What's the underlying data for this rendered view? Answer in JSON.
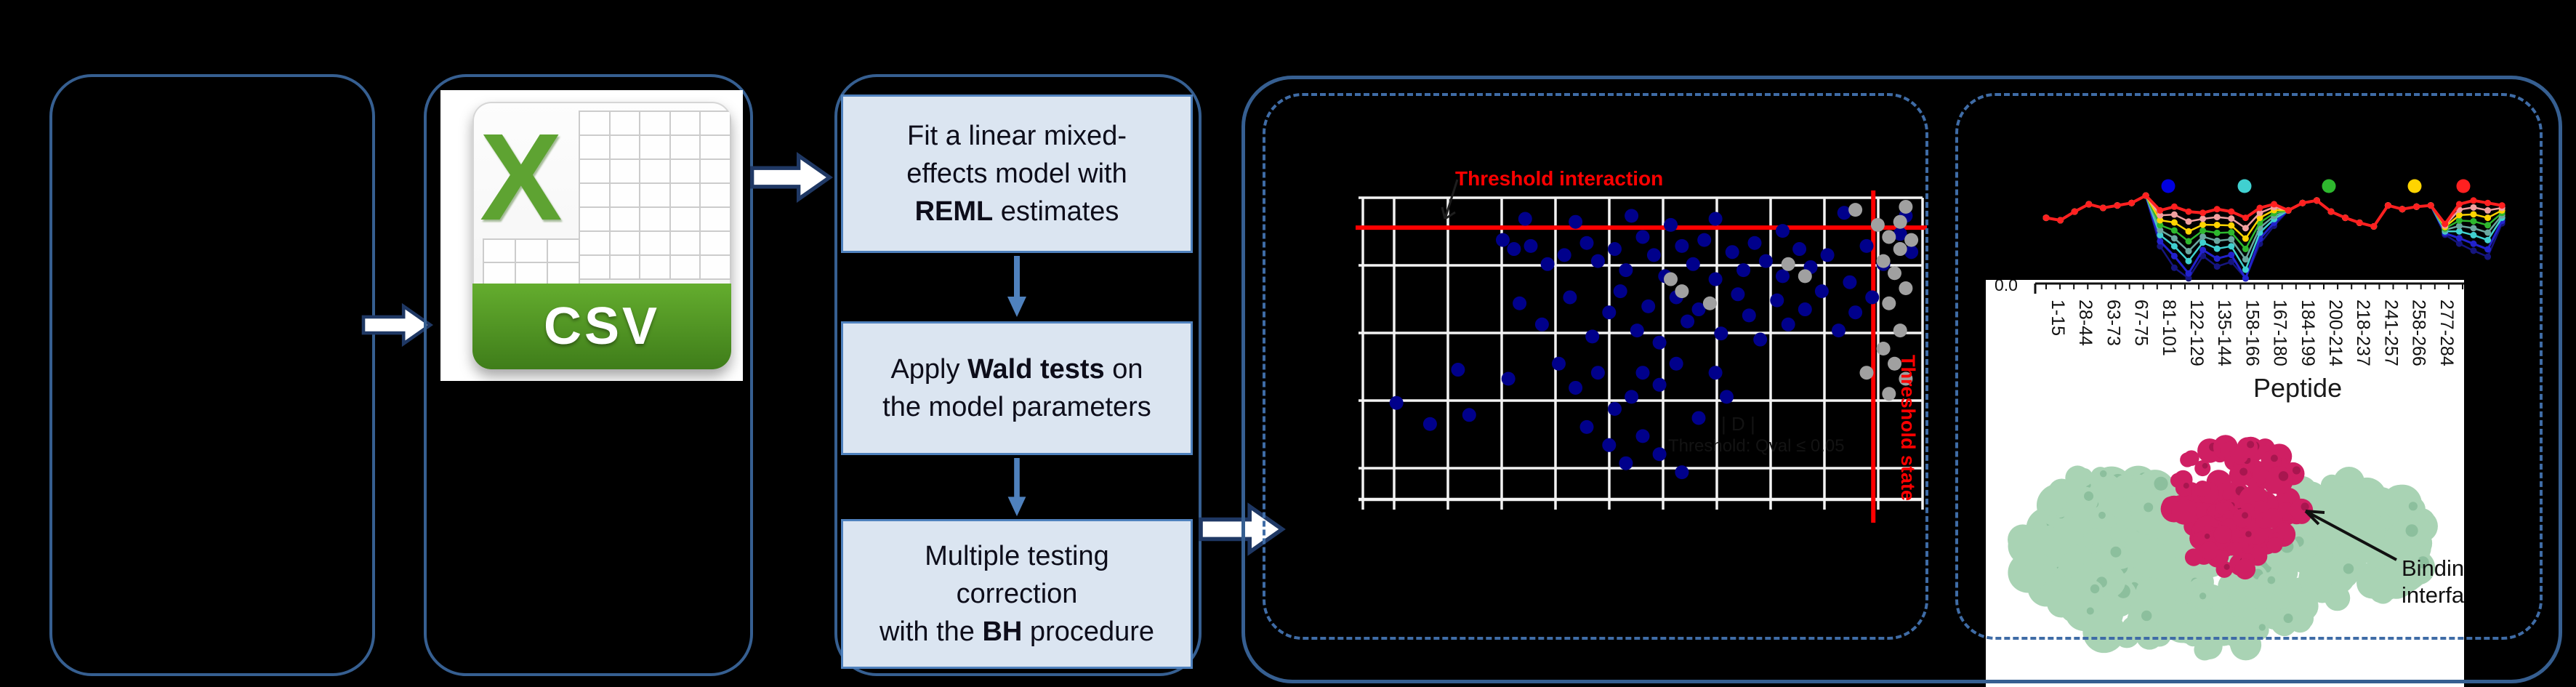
{
  "colors": {
    "panel_border": "#365f91",
    "dashed_border": "#3f6ca6",
    "flow_box_fill": "#dbe5f1",
    "flow_box_border": "#4f81bd",
    "connector_blue": "#4f81bd",
    "block_arrow_stroke": "#1f3864",
    "threshold_red": "#ff0000",
    "scatter_blue": "#00008b",
    "scatter_gray": "#a0a0a0",
    "csv_green": "#5ea332",
    "protein_green": "#a9d3b4",
    "protein_magenta": "#cf1f63"
  },
  "csv": {
    "label": "CSV"
  },
  "flow": {
    "boxes": [
      {
        "segments": [
          {
            "t": "Fit a linear mixed-",
            "b": false
          },
          {
            "t": "\n",
            "b": false
          },
          {
            "t": "effects model with",
            "b": false
          },
          {
            "t": "\n",
            "b": false
          },
          {
            "t": "REML",
            "b": true
          },
          {
            "t": " estimates",
            "b": false
          }
        ]
      },
      {
        "segments": [
          {
            "t": "Apply ",
            "b": false
          },
          {
            "t": "Wald tests",
            "b": true
          },
          {
            "t": " on",
            "b": false
          },
          {
            "t": "\n",
            "b": false
          },
          {
            "t": "the model parameters",
            "b": false
          }
        ]
      },
      {
        "segments": [
          {
            "t": "Multiple testing",
            "b": false
          },
          {
            "t": "\n",
            "b": false
          },
          {
            "t": "correction",
            "b": false
          },
          {
            "t": "\n",
            "b": false
          },
          {
            "t": "with the ",
            "b": false
          },
          {
            "t": "BH",
            "b": true
          },
          {
            "t": " procedure",
            "b": false
          }
        ]
      }
    ]
  },
  "scatter_labels": {
    "title": "Threshold interaction",
    "vline_label": "Threshold state",
    "faint_line1": "| D |",
    "faint_line2": "Threshold: Qval ≤ 0.05"
  },
  "protein_labels": {
    "line1": "Binding",
    "line2": "interface"
  },
  "chart_data": [
    {
      "type": "scatter",
      "title": "Threshold interaction",
      "annotations": [
        "Threshold state",
        "Threshold: Qval ≤ 0.05"
      ],
      "grid": "on",
      "threshold_h_pct": 9.9,
      "threshold_v_pct": 91.2,
      "series": [
        {
          "name": "peptides-significant-blue",
          "color": "#00008b",
          "points": [
            [
              29,
              7
            ],
            [
              38,
              8
            ],
            [
              48,
              6
            ],
            [
              55,
              9
            ],
            [
              63,
              7
            ],
            [
              86,
              5
            ],
            [
              97,
              6
            ],
            [
              75,
              11
            ],
            [
              25,
              14
            ],
            [
              27,
              17
            ],
            [
              30,
              16
            ],
            [
              33,
              22
            ],
            [
              36,
              19
            ],
            [
              40,
              15
            ],
            [
              42,
              21
            ],
            [
              45,
              17
            ],
            [
              47,
              24
            ],
            [
              50,
              13
            ],
            [
              52,
              19
            ],
            [
              54,
              26
            ],
            [
              57,
              16
            ],
            [
              59,
              22
            ],
            [
              61,
              14
            ],
            [
              63,
              27
            ],
            [
              66,
              18
            ],
            [
              68,
              24
            ],
            [
              70,
              15
            ],
            [
              72,
              21
            ],
            [
              75,
              26
            ],
            [
              78,
              17
            ],
            [
              80,
              23
            ],
            [
              83,
              19
            ],
            [
              87,
              28
            ],
            [
              90,
              16
            ],
            [
              93,
              22
            ],
            [
              96,
              12
            ],
            [
              98,
              18
            ],
            [
              28,
              35
            ],
            [
              32,
              42
            ],
            [
              37,
              33
            ],
            [
              41,
              46
            ],
            [
              44,
              38
            ],
            [
              46,
              31
            ],
            [
              49,
              44
            ],
            [
              51,
              36
            ],
            [
              53,
              48
            ],
            [
              56,
              33
            ],
            [
              58,
              41
            ],
            [
              60,
              37
            ],
            [
              64,
              45
            ],
            [
              67,
              32
            ],
            [
              69,
              39
            ],
            [
              71,
              47
            ],
            [
              74,
              34
            ],
            [
              76,
              42
            ],
            [
              79,
              37
            ],
            [
              82,
              31
            ],
            [
              85,
              44
            ],
            [
              88,
              38
            ],
            [
              91,
              33
            ],
            [
              17,
              57
            ],
            [
              19,
              72
            ],
            [
              26,
              60
            ],
            [
              35,
              55
            ],
            [
              38,
              63
            ],
            [
              42,
              58
            ],
            [
              45,
              70
            ],
            [
              48,
              66
            ],
            [
              50,
              58
            ],
            [
              53,
              62
            ],
            [
              56,
              55
            ],
            [
              40,
              76
            ],
            [
              44,
              82
            ],
            [
              47,
              88
            ],
            [
              50,
              79
            ],
            [
              53,
              85
            ],
            [
              57,
              91
            ],
            [
              60,
              73
            ],
            [
              63,
              58
            ],
            [
              65,
              66
            ],
            [
              6,
              68
            ],
            [
              12,
              75
            ]
          ]
        },
        {
          "name": "peptides-nonsignificant-gray",
          "color": "#a0a0a0",
          "points": [
            [
              55,
              27
            ],
            [
              57,
              31
            ],
            [
              62,
              35
            ],
            [
              76,
              22
            ],
            [
              79,
              26
            ],
            [
              92,
              9
            ],
            [
              94,
              13
            ],
            [
              96,
              17
            ],
            [
              93,
              21
            ],
            [
              95,
              25
            ],
            [
              97,
              30
            ],
            [
              94,
              35
            ],
            [
              96,
              44
            ],
            [
              93,
              50
            ],
            [
              95,
              55
            ],
            [
              97,
              60
            ],
            [
              94,
              65
            ],
            [
              90,
              58
            ],
            [
              96,
              8
            ],
            [
              98,
              14
            ],
            [
              88,
              4
            ],
            [
              97,
              3
            ]
          ]
        }
      ]
    },
    {
      "type": "line",
      "xlabel": "Peptide",
      "ytick_visible": "0.0",
      "categories": [
        "1-15",
        "28-44",
        "63-73",
        "67-75",
        "81-101",
        "122-129",
        "135-144",
        "158-166",
        "167-180",
        "184-199",
        "200-214",
        "218-237",
        "241-257",
        "258-266",
        "277-284"
      ],
      "legend_colors": [
        "#0000e0",
        "#40d0d0",
        "#2eb82e",
        "#ffd400",
        "#ff2020"
      ],
      "legend_position": "top",
      "series": [
        {
          "name": "t5-red",
          "color": "#ff2020",
          "width": 4,
          "values": [
            52,
            50,
            57,
            63,
            60,
            62,
            64,
            70,
            58,
            61,
            57,
            56,
            59,
            57,
            52,
            60,
            63,
            58,
            64,
            66,
            57,
            52,
            48,
            45,
            62,
            59,
            61,
            62,
            47,
            63,
            66,
            64,
            62
          ]
        },
        {
          "name": "t4-salmon",
          "color": "#f2a0a0",
          "width": 2.5,
          "values": [
            52,
            50,
            57,
            63,
            60,
            62,
            64,
            70,
            54,
            54.6,
            49,
            51.2,
            52.6,
            51.4,
            43.6,
            56,
            60.6,
            58,
            64,
            66,
            57,
            52,
            48,
            45,
            62,
            59,
            61,
            62,
            45.8,
            58.6,
            60.4,
            58,
            60
          ]
        },
        {
          "name": "t4-yellow",
          "color": "#ffd400",
          "width": 2.5,
          "values": [
            52,
            50,
            57,
            63,
            60,
            62,
            64,
            70,
            50,
            48.2,
            41,
            46.4,
            46.2,
            45.8,
            35.2,
            52,
            58.2,
            58,
            64,
            66,
            57,
            52,
            48,
            45,
            62,
            59,
            61,
            62,
            44.6,
            54.2,
            54.8,
            52,
            58
          ]
        },
        {
          "name": "t3-green",
          "color": "#2eb82e",
          "width": 2.5,
          "values": [
            52,
            50,
            57,
            63,
            60,
            62,
            64,
            70,
            46,
            41.8,
            33,
            41.6,
            39.8,
            40.2,
            26.8,
            48,
            55.8,
            58,
            64,
            66,
            57,
            52,
            48,
            45,
            62,
            59,
            61,
            62,
            43.4,
            49.8,
            49.2,
            46,
            56
          ]
        },
        {
          "name": "t3-teal",
          "color": "#6aa8a0",
          "width": 2.5,
          "values": [
            52,
            50,
            57,
            63,
            60,
            62,
            64,
            70,
            42,
            35.4,
            25,
            36.8,
            33.4,
            34.6,
            18.4,
            44,
            53.4,
            58,
            64,
            66,
            57,
            52,
            48,
            45,
            62,
            59,
            61,
            62,
            42.2,
            45.4,
            43.6,
            40,
            54
          ]
        },
        {
          "name": "t2-cyan",
          "color": "#40d0d0",
          "width": 2.5,
          "values": [
            52,
            50,
            57,
            63,
            60,
            62,
            64,
            70,
            38,
            29,
            17,
            32,
            27,
            29,
            10,
            40,
            51,
            58,
            64,
            66,
            57,
            52,
            48,
            45,
            62,
            59,
            61,
            62,
            41,
            41,
            38,
            34,
            52
          ]
        },
        {
          "name": "t1-blue",
          "color": "#2222cc",
          "width": 3,
          "values": [
            52,
            50,
            57,
            63,
            60,
            62,
            64,
            70,
            33,
            21,
            7,
            26,
            19,
            22,
            3,
            35,
            48,
            58,
            64,
            66,
            57,
            52,
            48,
            45,
            62,
            59,
            61,
            62,
            39.5,
            35.5,
            31,
            26.5,
            49.5
          ]
        },
        {
          "name": "t0-navy",
          "color": "#15157e",
          "width": 2.5,
          "values": [
            52,
            50,
            57,
            63,
            60,
            62,
            64,
            70,
            29,
            11.6,
            3,
            21.2,
            12.6,
            16.4,
            3,
            31,
            45.6,
            58,
            64,
            66,
            57,
            52,
            48,
            45,
            62,
            59,
            61,
            62,
            38.3,
            31.1,
            25.4,
            20.5,
            47.5
          ]
        }
      ]
    }
  ]
}
